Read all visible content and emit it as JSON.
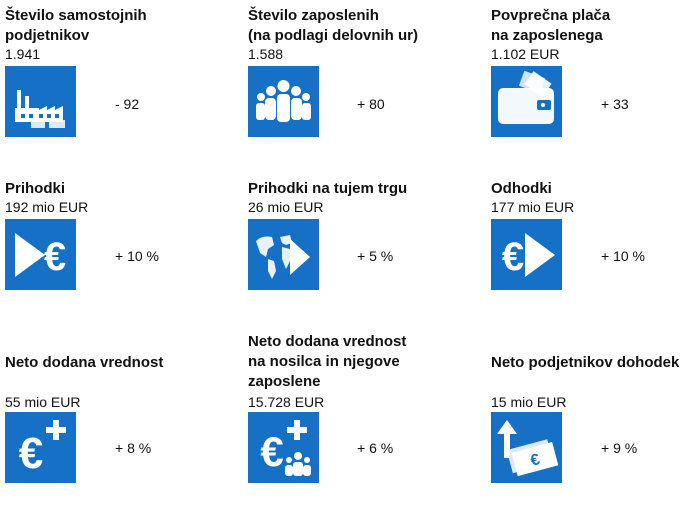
{
  "colors": {
    "tile": "#1570c6",
    "tile_dark": "#0e4f90",
    "text": "#111111",
    "icon_light": "#ffffff"
  },
  "cards": [
    {
      "title": "Število samostojnih\npodjetnikov",
      "value": "1.941",
      "change": "- 92",
      "icon": "factory-icon"
    },
    {
      "title": "Število zaposlenih\n(na podlagi delovnih ur)",
      "value": "1.588",
      "change": "+ 80",
      "icon": "people-icon"
    },
    {
      "title": "Povprečna plača\nna zaposlenega",
      "value": "1.102 EUR",
      "change": "+ 33",
      "icon": "wallet-icon"
    },
    {
      "title": "Prihodki",
      "value": "192 mio EUR",
      "change": "+ 10 %",
      "icon": "euro-in-icon"
    },
    {
      "title": "Prihodki na tujem trgu",
      "value": "26 mio EUR",
      "change": "+ 5 %",
      "icon": "world-map-icon"
    },
    {
      "title": "Odhodki",
      "value": "177 mio EUR",
      "change": "+ 10 %",
      "icon": "euro-out-icon"
    },
    {
      "title": "Neto dodana vrednost",
      "value": "55 mio EUR",
      "change": "+ 8 %",
      "icon": "euro-plus-icon"
    },
    {
      "title": "Neto dodana vrednost\nna nosilca in njegove\nzaposlene",
      "value": "15.728 EUR",
      "change": "+ 6 %",
      "icon": "euro-plus-people-icon"
    },
    {
      "title": "Neto podjetnikov dohodek",
      "value": "15 mio EUR",
      "change": "+ 9 %",
      "icon": "money-up-icon"
    }
  ]
}
